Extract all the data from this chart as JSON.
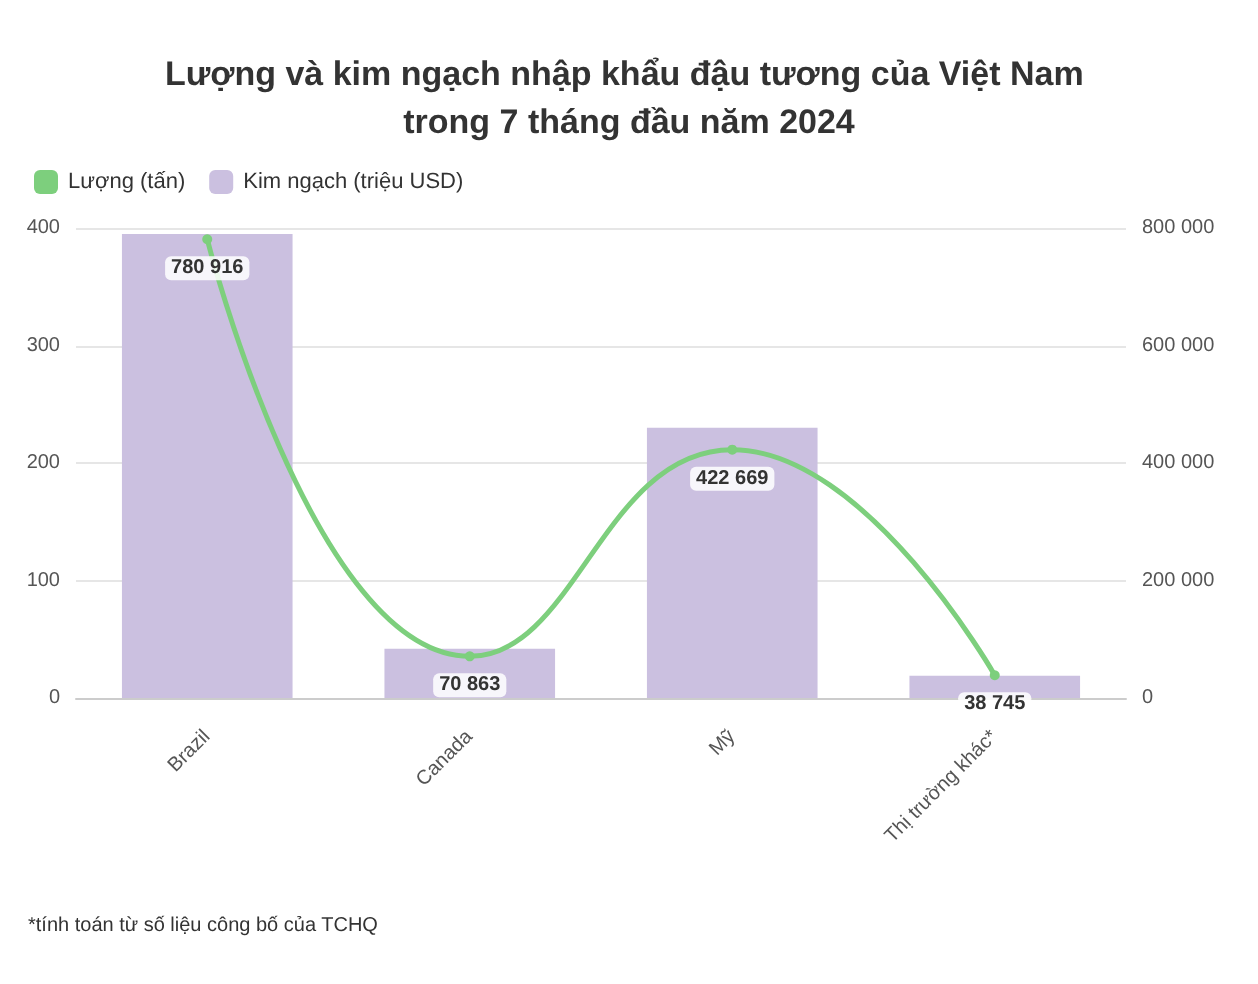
{
  "chart_data": {
    "type": "bar",
    "title": "Lượng và kim ngạch nhập khẩu đậu tương của Việt Nam trong 7 tháng đầu năm 2024",
    "categories": [
      "Brazil",
      "Canada",
      "Mỹ",
      "Thị trường khác*"
    ],
    "series": [
      {
        "name": "Lượng (tấn)",
        "type": "line",
        "axis": "y2",
        "color": "#7dcf7d",
        "values": [
          780916,
          70863,
          422669,
          38745
        ],
        "value_labels": [
          "780 916",
          "70 863",
          "422 669",
          "38 745"
        ]
      },
      {
        "name": "Kim ngạch (triệu USD)",
        "color": "#cbc0e0",
        "values": [
          395,
          42,
          230,
          19
        ]
      }
    ],
    "ylim": [
      0,
      400
    ],
    "yticks": [
      0,
      100,
      200,
      300,
      400
    ],
    "y2lim": [
      0,
      800000
    ],
    "y2ticks": [
      {
        "value": 0,
        "label": "0"
      },
      {
        "value": 200000,
        "label": "200 000"
      },
      {
        "value": 400000,
        "label": "400 000"
      },
      {
        "value": 600000,
        "label": "600 000"
      },
      {
        "value": 800000,
        "label": "800 000"
      }
    ],
    "grid": "y",
    "legend": "top left",
    "marker": "circle",
    "line_style": "solid",
    "annotations": [
      "*tính toán từ số liệu công bố của TCHQ"
    ]
  }
}
